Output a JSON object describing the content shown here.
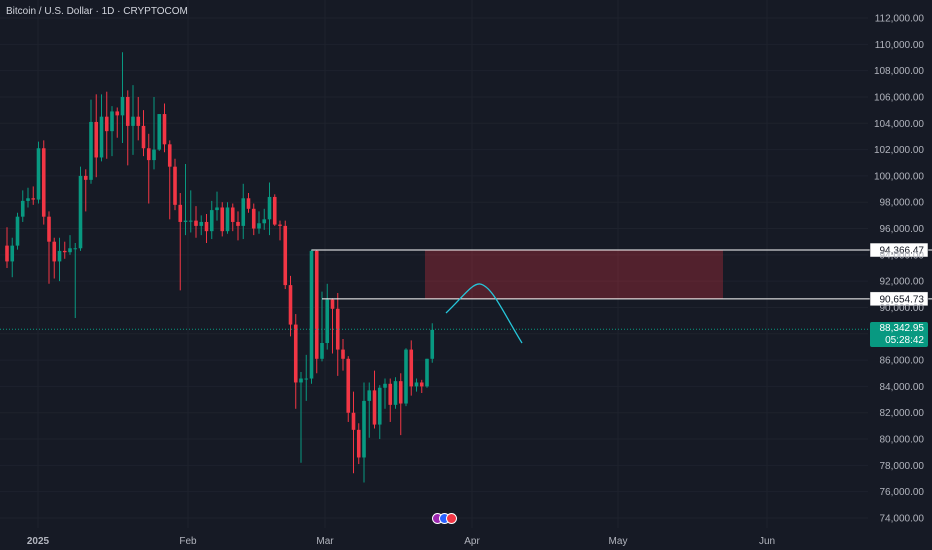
{
  "header": {
    "symbol_title": "Bitcoin / U.S. Dollar · 1D · CRYPTOCOM"
  },
  "price_scale": {
    "last_price_label": "88,342.95",
    "countdown": "05:28:42",
    "last_price_color": "#089981"
  },
  "events": [
    {
      "name": "crypto-event-icon",
      "color": "#9c27b0"
    },
    {
      "name": "us-flag-event-icon",
      "color": "#2962ff"
    },
    {
      "name": "economic-event-icon",
      "color": "#f23645"
    }
  ],
  "chart_data": {
    "type": "candlestick",
    "title": "Bitcoin / U.S. Dollar · 1D · CRYPTOCOM",
    "xlabel": "",
    "ylabel": "",
    "up_color": "#089981",
    "down_color": "#f23645",
    "ylim": [
      73000,
      113000
    ],
    "x_ticks": [
      "2025",
      "Feb",
      "Mar",
      "Apr",
      "May",
      "Jun"
    ],
    "y_ticks": [
      "74,000.00",
      "76,000.00",
      "78,000.00",
      "80,000.00",
      "82,000.00",
      "84,000.00",
      "86,000.00",
      "88,000.00",
      "90,000.00",
      "92,000.00",
      "94,000.00",
      "96,000.00",
      "98,000.00",
      "100,000.00",
      "102,000.00",
      "104,000.00",
      "106,000.00",
      "108,000.00",
      "110,000.00",
      "112,000.00"
    ],
    "candles": [
      {
        "o": 94700,
        "h": 96100,
        "l": 93000,
        "c": 93500
      },
      {
        "o": 93500,
        "h": 95300,
        "l": 92300,
        "c": 94700
      },
      {
        "o": 94700,
        "h": 97200,
        "l": 94400,
        "c": 96900
      },
      {
        "o": 96900,
        "h": 98900,
        "l": 96500,
        "c": 98100
      },
      {
        "o": 98100,
        "h": 99100,
        "l": 97600,
        "c": 98300
      },
      {
        "o": 98300,
        "h": 99200,
        "l": 97800,
        "c": 98200
      },
      {
        "o": 98200,
        "h": 102600,
        "l": 97900,
        "c": 102100
      },
      {
        "o": 102100,
        "h": 102700,
        "l": 96300,
        "c": 96900
      },
      {
        "o": 96900,
        "h": 97300,
        "l": 91800,
        "c": 95000
      },
      {
        "o": 95000,
        "h": 95300,
        "l": 92200,
        "c": 93500
      },
      {
        "o": 93500,
        "h": 95300,
        "l": 92000,
        "c": 94300
      },
      {
        "o": 94300,
        "h": 95000,
        "l": 93700,
        "c": 94200
      },
      {
        "o": 94200,
        "h": 95500,
        "l": 94000,
        "c": 94500
      },
      {
        "o": 94500,
        "h": 94900,
        "l": 89200,
        "c": 94500
      },
      {
        "o": 94500,
        "h": 100700,
        "l": 94300,
        "c": 100000
      },
      {
        "o": 100000,
        "h": 100500,
        "l": 97300,
        "c": 99700
      },
      {
        "o": 99700,
        "h": 105800,
        "l": 99400,
        "c": 104100
      },
      {
        "o": 104100,
        "h": 106200,
        "l": 99900,
        "c": 101400
      },
      {
        "o": 101400,
        "h": 106200,
        "l": 101100,
        "c": 104500
      },
      {
        "o": 104500,
        "h": 106400,
        "l": 101300,
        "c": 103400
      },
      {
        "o": 103400,
        "h": 105300,
        "l": 101500,
        "c": 104900
      },
      {
        "o": 104900,
        "h": 105200,
        "l": 102900,
        "c": 104600
      },
      {
        "o": 104600,
        "h": 109400,
        "l": 102500,
        "c": 106000
      },
      {
        "o": 106000,
        "h": 106500,
        "l": 100800,
        "c": 103800
      },
      {
        "o": 103800,
        "h": 106900,
        "l": 101600,
        "c": 104500
      },
      {
        "o": 104500,
        "h": 106000,
        "l": 102700,
        "c": 103800
      },
      {
        "o": 103800,
        "h": 105000,
        "l": 101500,
        "c": 102100
      },
      {
        "o": 102100,
        "h": 103200,
        "l": 97900,
        "c": 101200
      },
      {
        "o": 101200,
        "h": 106000,
        "l": 100500,
        "c": 102000
      },
      {
        "o": 102000,
        "h": 104700,
        "l": 101900,
        "c": 104700
      },
      {
        "o": 104700,
        "h": 105500,
        "l": 101800,
        "c": 102400
      },
      {
        "o": 102400,
        "h": 102700,
        "l": 96700,
        "c": 100700
      },
      {
        "o": 100700,
        "h": 101300,
        "l": 97400,
        "c": 97800
      },
      {
        "o": 97800,
        "h": 98700,
        "l": 91300,
        "c": 96500
      },
      {
        "o": 96500,
        "h": 100900,
        "l": 95500,
        "c": 96600
      },
      {
        "o": 96600,
        "h": 98900,
        "l": 95700,
        "c": 96600
      },
      {
        "o": 96600,
        "h": 97700,
        "l": 95300,
        "c": 96200
      },
      {
        "o": 96200,
        "h": 97000,
        "l": 95500,
        "c": 96500
      },
      {
        "o": 96500,
        "h": 97100,
        "l": 94900,
        "c": 95800
      },
      {
        "o": 95800,
        "h": 98100,
        "l": 95200,
        "c": 97400
      },
      {
        "o": 97400,
        "h": 98800,
        "l": 96600,
        "c": 97600
      },
      {
        "o": 97600,
        "h": 98000,
        "l": 95400,
        "c": 95800
      },
      {
        "o": 95800,
        "h": 98000,
        "l": 95600,
        "c": 97600
      },
      {
        "o": 97600,
        "h": 97900,
        "l": 95800,
        "c": 96500
      },
      {
        "o": 96500,
        "h": 97300,
        "l": 95100,
        "c": 96200
      },
      {
        "o": 96200,
        "h": 99400,
        "l": 95200,
        "c": 98300
      },
      {
        "o": 98300,
        "h": 98700,
        "l": 97200,
        "c": 97500
      },
      {
        "o": 97500,
        "h": 97900,
        "l": 95500,
        "c": 96000
      },
      {
        "o": 96000,
        "h": 97300,
        "l": 95600,
        "c": 96400
      },
      {
        "o": 96400,
        "h": 97500,
        "l": 95900,
        "c": 96700
      },
      {
        "o": 96700,
        "h": 99500,
        "l": 95500,
        "c": 98400
      },
      {
        "o": 98400,
        "h": 98600,
        "l": 96200,
        "c": 96300
      },
      {
        "o": 96300,
        "h": 96600,
        "l": 95100,
        "c": 96200
      },
      {
        "o": 96200,
        "h": 96600,
        "l": 91400,
        "c": 91700
      },
      {
        "o": 91700,
        "h": 92400,
        "l": 87800,
        "c": 88700
      },
      {
        "o": 88700,
        "h": 89500,
        "l": 82300,
        "c": 84300
      },
      {
        "o": 84300,
        "h": 85100,
        "l": 78200,
        "c": 84600
      },
      {
        "o": 84600,
        "h": 86400,
        "l": 82900,
        "c": 84600
      },
      {
        "o": 84600,
        "h": 94400,
        "l": 84200,
        "c": 94300
      },
      {
        "o": 94300,
        "h": 94400,
        "l": 85000,
        "c": 86100
      },
      {
        "o": 86100,
        "h": 91200,
        "l": 85900,
        "c": 87300
      },
      {
        "o": 87300,
        "h": 91800,
        "l": 86800,
        "c": 90600
      },
      {
        "o": 90600,
        "h": 90700,
        "l": 86500,
        "c": 89900
      },
      {
        "o": 89900,
        "h": 91100,
        "l": 84800,
        "c": 86800
      },
      {
        "o": 86800,
        "h": 87600,
        "l": 85200,
        "c": 86100
      },
      {
        "o": 86100,
        "h": 86300,
        "l": 81300,
        "c": 82000
      },
      {
        "o": 82000,
        "h": 83600,
        "l": 77400,
        "c": 80700
      },
      {
        "o": 80700,
        "h": 81200,
        "l": 78100,
        "c": 78600
      },
      {
        "o": 78600,
        "h": 84300,
        "l": 76700,
        "c": 82900
      },
      {
        "o": 82900,
        "h": 84300,
        "l": 80100,
        "c": 83700
      },
      {
        "o": 83700,
        "h": 85200,
        "l": 80800,
        "c": 81100
      },
      {
        "o": 81100,
        "h": 84100,
        "l": 80000,
        "c": 83900
      },
      {
        "o": 83900,
        "h": 84600,
        "l": 82300,
        "c": 84200
      },
      {
        "o": 84200,
        "h": 84600,
        "l": 81300,
        "c": 82600
      },
      {
        "o": 82600,
        "h": 84700,
        "l": 82300,
        "c": 84400
      },
      {
        "o": 84400,
        "h": 85000,
        "l": 80300,
        "c": 82700
      },
      {
        "o": 82700,
        "h": 86900,
        "l": 82500,
        "c": 86800
      },
      {
        "o": 86800,
        "h": 87500,
        "l": 83300,
        "c": 84000
      },
      {
        "o": 84000,
        "h": 84600,
        "l": 83600,
        "c": 84300
      },
      {
        "o": 84300,
        "h": 84500,
        "l": 83500,
        "c": 84000
      },
      {
        "o": 84000,
        "h": 86100,
        "l": 83900,
        "c": 86100
      },
      {
        "o": 86100,
        "h": 88800,
        "l": 85800,
        "c": 88300
      }
    ],
    "levels": [
      {
        "price": 94366.47,
        "label": "94,366.47"
      },
      {
        "price": 90654.73,
        "label": "90,654.73"
      }
    ],
    "last_price": 88342.95,
    "zone": {
      "top": 94366.47,
      "bottom": 90654.73,
      "color": "#f23645"
    },
    "projection_color": "#26c6da"
  }
}
